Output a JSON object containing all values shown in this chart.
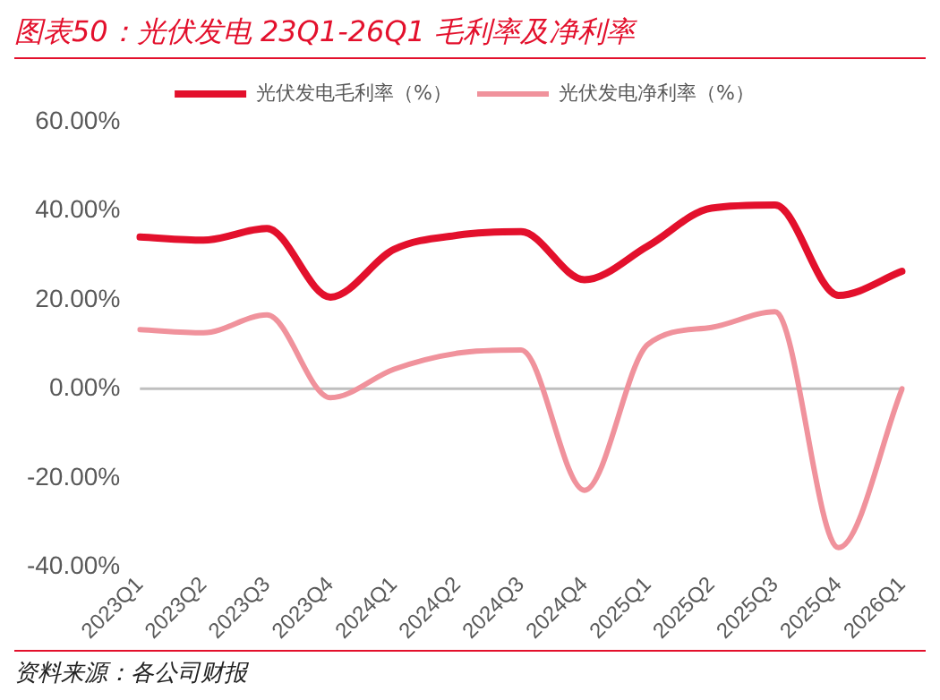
{
  "chart_data": {
    "type": "line",
    "title": "图表50：光伏发电 23Q1-26Q1 毛利率及净利率",
    "annotations": [
      "资料来源：各公司财报"
    ],
    "categories": [
      "2023Q1",
      "2023Q2",
      "2023Q3",
      "2023Q4",
      "2024Q1",
      "2024Q2",
      "2024Q3",
      "2024Q4",
      "2025Q1",
      "2025Q2",
      "2025Q3",
      "2025Q4",
      "2026Q1"
    ],
    "series": [
      {
        "name": "光伏发电毛利率（%）",
        "color": "#e3102c",
        "values": [
          34.1,
          33.4,
          36,
          20.6,
          31.3,
          34.5,
          35.3,
          24.5,
          32.1,
          40.6,
          41.3,
          21,
          26.4
        ]
      },
      {
        "name": "光伏发电净利率（%）",
        "color": "#f0929c",
        "values": [
          13.3,
          12.6,
          16.6,
          -2,
          4.4,
          8,
          8.7,
          -22.8,
          10,
          13.8,
          17.3,
          -35.7,
          0
        ]
      }
    ],
    "ylim": [
      -40,
      60
    ],
    "yticks": [
      {
        "value": -40,
        "label": "-40.00%"
      },
      {
        "value": -20,
        "label": "-20.00%"
      },
      {
        "value": 0,
        "label": "0.00%"
      },
      {
        "value": 20,
        "label": "20.00%"
      },
      {
        "value": 40,
        "label": "40.00%"
      },
      {
        "value": 60,
        "label": "60.00%"
      }
    ],
    "ref_lines": [
      {
        "axis": "y",
        "value": 0,
        "color": "#bfbfbf"
      }
    ],
    "grid": false,
    "legend": "top",
    "marker": "none",
    "line_style": "solid"
  }
}
